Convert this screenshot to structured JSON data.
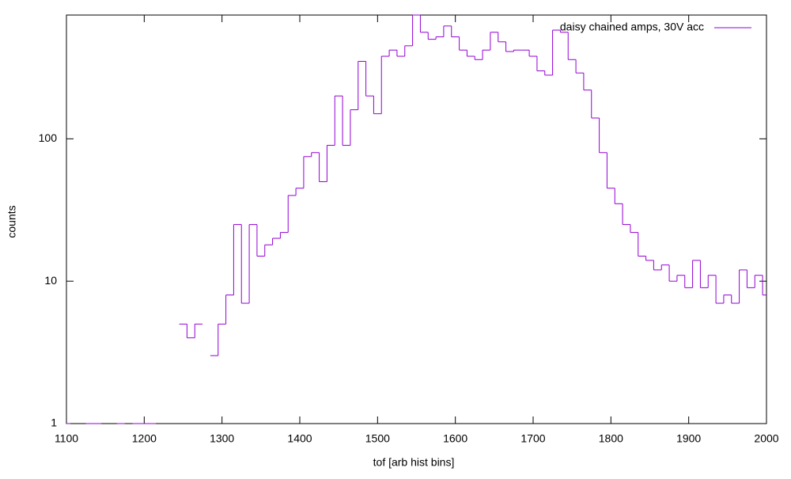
{
  "chart_data": {
    "type": "line",
    "xlabel": "tof [arb hist bins]",
    "ylabel": "counts",
    "log_y": true,
    "legend": "top-right",
    "x": [
      1100,
      1110,
      1120,
      1130,
      1140,
      1150,
      1160,
      1170,
      1180,
      1190,
      1200,
      1210,
      1220,
      1230,
      1240,
      1250,
      1260,
      1270,
      1280,
      1290,
      1300,
      1310,
      1320,
      1330,
      1340,
      1350,
      1360,
      1370,
      1380,
      1390,
      1400,
      1410,
      1420,
      1430,
      1440,
      1450,
      1460,
      1470,
      1480,
      1490,
      1500,
      1510,
      1520,
      1530,
      1540,
      1550,
      1560,
      1570,
      1580,
      1590,
      1600,
      1610,
      1620,
      1630,
      1640,
      1650,
      1660,
      1670,
      1680,
      1690,
      1700,
      1710,
      1720,
      1730,
      1740,
      1750,
      1760,
      1770,
      1780,
      1790,
      1800,
      1810,
      1820,
      1830,
      1840,
      1850,
      1860,
      1870,
      1880,
      1890,
      1900,
      1910,
      1920,
      1930,
      1940,
      1950,
      1960,
      1970,
      1980,
      1990,
      2000
    ],
    "series": [
      {
        "name": "daisy chained amps, 30V acc",
        "color": "#9400d3",
        "values": [
          1,
          null,
          null,
          1,
          1,
          null,
          null,
          1,
          null,
          1,
          1,
          1,
          null,
          null,
          null,
          5,
          4,
          5,
          null,
          3,
          5,
          8,
          25,
          7,
          25,
          15,
          18,
          20,
          22,
          40,
          45,
          75,
          80,
          50,
          90,
          200,
          90,
          160,
          350,
          200,
          150,
          380,
          420,
          380,
          450,
          740,
          560,
          500,
          520,
          620,
          520,
          420,
          380,
          360,
          420,
          560,
          480,
          410,
          420,
          420,
          380,
          300,
          280,
          580,
          560,
          360,
          290,
          220,
          140,
          80,
          45,
          35,
          25,
          22,
          15,
          14,
          12,
          13,
          10,
          11,
          9,
          14,
          9,
          11,
          7,
          8,
          7,
          12,
          9,
          11,
          8
        ]
      }
    ],
    "xlim": [
      1100,
      2000
    ],
    "xticks": [
      1100,
      1200,
      1300,
      1400,
      1500,
      1600,
      1700,
      1800,
      1900,
      2000
    ],
    "ylim": [
      1,
      740
    ],
    "yticks": [
      1,
      10,
      100
    ]
  }
}
